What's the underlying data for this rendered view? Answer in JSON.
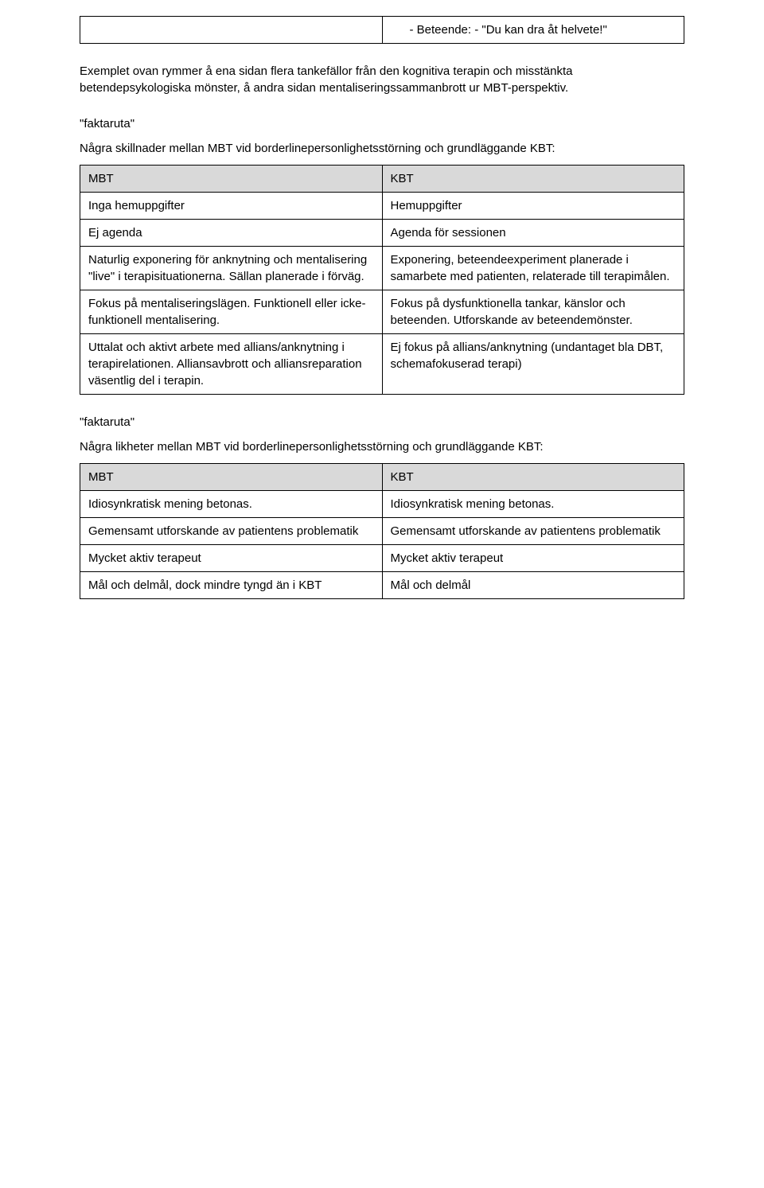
{
  "topBox": {
    "bullet": "-   Beteende: - \"Du kan dra åt helvete!\""
  },
  "introParagraph": "Exemplet ovan rymmer å ena sidan flera tankefällor från den kognitiva terapin och misstänkta betendepsykologiska mönster, å andra sidan mentaliseringssammanbrott ur MBT-perspektiv.",
  "sections": [
    {
      "label": "\"faktaruta\"",
      "caption": "Några skillnader mellan MBT vid borderlinepersonlighetsstörning och grundläggande KBT:",
      "header": {
        "left": "MBT",
        "right": "KBT"
      },
      "rows": [
        {
          "left": "Inga hemuppgifter",
          "right": "Hemuppgifter"
        },
        {
          "left": "Ej agenda",
          "right": "Agenda för sessionen"
        },
        {
          "left": "Naturlig exponering för anknytning och mentalisering \"live\" i terapisituationerna. Sällan planerade i förväg.",
          "right": "Exponering, beteendeexperiment planerade i samarbete med patienten, relaterade till terapimålen."
        },
        {
          "left": "Fokus på mentaliseringslägen. Funktionell eller icke-funktionell mentalisering.",
          "right": "Fokus på dysfunktionella tankar, känslor och beteenden. Utforskande av beteendemönster."
        },
        {
          "left": "Uttalat och aktivt arbete med allians/anknytning i terapirelationen. Alliansavbrott och alliansreparation väsentlig del i terapin.",
          "right": "Ej fokus på allians/anknytning (undantaget bla DBT, schemafokuserad terapi)"
        }
      ]
    },
    {
      "label": "\"faktaruta\"",
      "caption": "Några likheter mellan MBT vid borderlinepersonlighetsstörning och grundläggande KBT:",
      "header": {
        "left": "MBT",
        "right": "KBT"
      },
      "rows": [
        {
          "left": "Idiosynkratisk mening betonas.",
          "right": "Idiosynkratisk mening betonas."
        },
        {
          "left": "Gemensamt utforskande av patientens problematik",
          "right": "Gemensamt utforskande av patientens problematik"
        },
        {
          "left": "Mycket aktiv terapeut",
          "right": "Mycket aktiv terapeut"
        },
        {
          "left": "Mål och delmål, dock mindre tyngd än i KBT",
          "right": "Mål och delmål"
        }
      ]
    }
  ]
}
